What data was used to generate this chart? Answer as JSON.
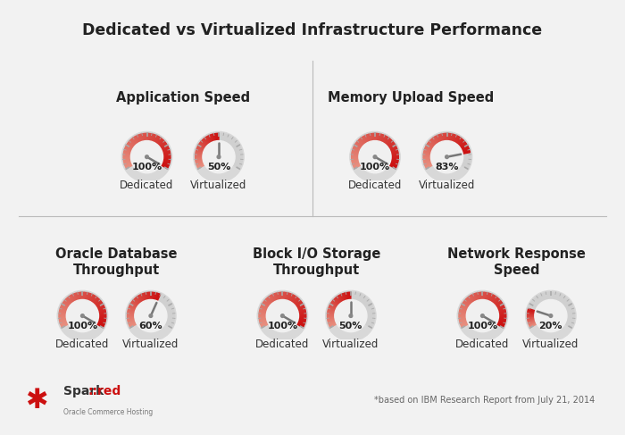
{
  "title": "Dedicated vs Virtualized Infrastructure Performance",
  "bg_outer": "#d0d0d0",
  "bg_panel": "#f2f2f2",
  "bg_title": "#e8e8e8",
  "bg_footer": "#e8e8e8",
  "bg_content": "#ffffff",
  "title_fontsize": 12.5,
  "footer_text": "*based on IBM Research Report from July 21, 2014",
  "logo_text1": "Spark",
  "logo_text2": "::red",
  "logo_sub": "Oracle Commerce Hosting",
  "divider_color": "#bbbbbb",
  "row0_groups": [
    {
      "title": "Application Speed",
      "gauges": [
        {
          "label": "Dedicated",
          "value": 100
        },
        {
          "label": "Virtualized",
          "value": 50
        }
      ]
    },
    {
      "title": "Memory Upload Speed",
      "gauges": [
        {
          "label": "Dedicated",
          "value": 100
        },
        {
          "label": "Virtualized",
          "value": 83
        }
      ]
    }
  ],
  "row1_groups": [
    {
      "title": "Oracle Database\nThroughput",
      "gauges": [
        {
          "label": "Dedicated",
          "value": 100
        },
        {
          "label": "Virtualized",
          "value": 60
        }
      ]
    },
    {
      "title": "Block I/O Storage\nThroughput",
      "gauges": [
        {
          "label": "Dedicated",
          "value": 100
        },
        {
          "label": "Virtualized",
          "value": 50
        }
      ]
    },
    {
      "title": "Network Response\nSpeed",
      "gauges": [
        {
          "label": "Dedicated",
          "value": 100
        },
        {
          "label": "Virtualized",
          "value": 20
        }
      ]
    }
  ],
  "gauge_outer_color": "#d8d8d8",
  "gauge_track_color": "#d0d0d0",
  "gauge_inner_color": "#f0f0f0",
  "gauge_tick_color": "#aaaaaa",
  "gauge_needle_color": "#777777",
  "gauge_center_color": "#888888",
  "grad_start": "#e8a090",
  "grad_end": "#cc1010",
  "value_fontsize": 8,
  "label_fontsize": 8.5,
  "group_title_fontsize": 10.5
}
